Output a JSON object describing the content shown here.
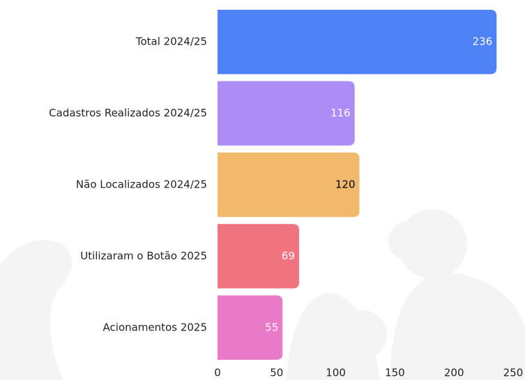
{
  "chart_data": {
    "type": "bar",
    "orientation": "horizontal",
    "categories": [
      "Total 2024/25",
      "Cadastros Realizados 2024/25",
      "Não Localizados 2024/25",
      "Utilizaram o Botão 2025",
      "Acionamentos 2025"
    ],
    "values": [
      236,
      116,
      120,
      69,
      55
    ],
    "colors": [
      "#4f81f7",
      "#ad8cf5",
      "#f2b86c",
      "#f07480",
      "#e87ac8"
    ],
    "value_label_colors": [
      "#ffffff",
      "#ffffff",
      "#000000",
      "#ffffff",
      "#ffffff"
    ],
    "xlim": [
      0,
      250
    ],
    "xticks": [
      0,
      50,
      100,
      150,
      200,
      250
    ],
    "grid": false
  }
}
